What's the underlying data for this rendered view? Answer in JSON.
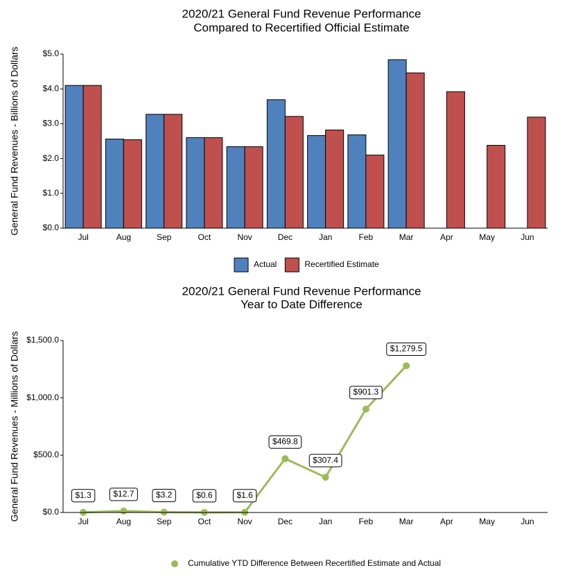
{
  "chart_data": [
    {
      "type": "bar",
      "title": "2020/21 General Fund Revenue Performance",
      "subtitle": "Compared to Recertified Official Estimate",
      "y_label": "General Fund Revenues - Billions of Dollars",
      "categories": [
        "Jul",
        "Aug",
        "Sep",
        "Oct",
        "Nov",
        "Dec",
        "Jan",
        "Feb",
        "Mar",
        "Apr",
        "May",
        "Jun"
      ],
      "series": [
        {
          "name": "Actual",
          "color": "#4f81bd",
          "values": [
            4.1,
            2.56,
            3.27,
            2.6,
            2.34,
            3.69,
            2.66,
            2.68,
            4.84,
            null,
            null,
            null
          ]
        },
        {
          "name": "Recertified Estimate",
          "color": "#c0504d",
          "values": [
            4.1,
            2.54,
            3.27,
            2.6,
            2.34,
            3.21,
            2.82,
            2.1,
            4.46,
            3.92,
            2.38,
            3.19
          ]
        }
      ],
      "ylim": [
        0,
        5
      ],
      "yticks": [
        {
          "value": 0,
          "label": "$0.0"
        },
        {
          "value": 1,
          "label": "$1.0"
        },
        {
          "value": 2,
          "label": "$2.0"
        },
        {
          "value": 3,
          "label": "$3.0"
        },
        {
          "value": 4,
          "label": "$4.0"
        },
        {
          "value": 5,
          "label": "$5.0"
        }
      ],
      "legend": "bottom"
    },
    {
      "type": "line",
      "title": "2020/21 General Fund Revenue Performance",
      "subtitle": "Year to Date Difference",
      "y_label": "General Fund Revenues - Millions of Dollars",
      "categories": [
        "Jul",
        "Aug",
        "Sep",
        "Oct",
        "Nov",
        "Dec",
        "Jan",
        "Feb",
        "Mar",
        "Apr",
        "May",
        "Jun"
      ],
      "series": [
        {
          "name": "Cumulative YTD Difference Between Recertified Estimate and Actual",
          "color": "#9bbb59",
          "values": [
            1.3,
            12.7,
            3.2,
            0.6,
            1.6,
            469.8,
            307.4,
            901.3,
            1279.5,
            null,
            null,
            null
          ],
          "value_labels": [
            "$1.3",
            "$12.7",
            "$3.2",
            "$0.6",
            "$1.6",
            "$469.8",
            "$307.4",
            "$901.3",
            "$1,279.5",
            null,
            null,
            null
          ]
        }
      ],
      "ylim": [
        0,
        1500
      ],
      "yticks": [
        {
          "value": 0,
          "label": "$0.0"
        },
        {
          "value": 500,
          "label": "$500.0"
        },
        {
          "value": 1000,
          "label": "$1,000.0"
        },
        {
          "value": 1500,
          "label": "$1,500.0"
        }
      ],
      "legend": "bottom"
    }
  ]
}
